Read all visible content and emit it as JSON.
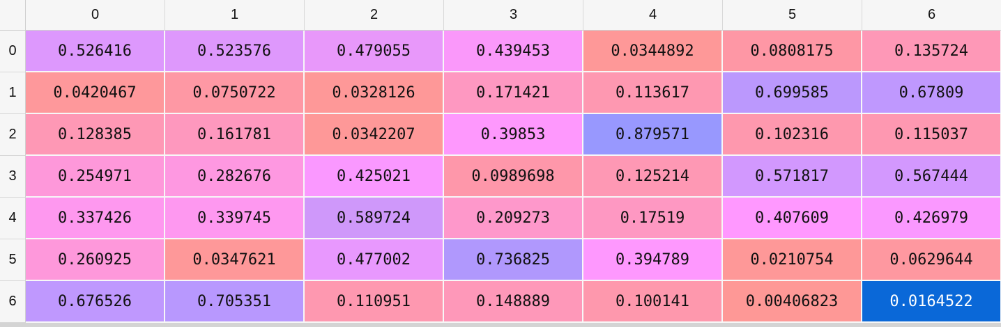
{
  "table": {
    "columns": [
      "0",
      "1",
      "2",
      "3",
      "4",
      "5",
      "6"
    ],
    "rows": [
      {
        "index": "0",
        "cells": [
          {
            "value": "0.526416",
            "color": "#DD98FD"
          },
          {
            "value": "0.523576",
            "color": "#DE98FC"
          },
          {
            "value": "0.479055",
            "color": "#E898FA"
          },
          {
            "value": "0.439453",
            "color": "#FA98FA"
          },
          {
            "value": "0.0344892",
            "color": "#FE9898"
          },
          {
            "value": "0.0808175",
            "color": "#FE97A5"
          },
          {
            "value": "0.135724",
            "color": "#FE98B7"
          }
        ]
      },
      {
        "index": "1",
        "cells": [
          {
            "value": "0.0420467",
            "color": "#FE989B"
          },
          {
            "value": "0.0750722",
            "color": "#FE98A4"
          },
          {
            "value": "0.0328126",
            "color": "#FE9898"
          },
          {
            "value": "0.171421",
            "color": "#FE98C1"
          },
          {
            "value": "0.113617",
            "color": "#FE98B1"
          },
          {
            "value": "0.699585",
            "color": "#BB98FD"
          },
          {
            "value": "0.67809",
            "color": "#BF98FE"
          }
        ]
      },
      {
        "index": "2",
        "cells": [
          {
            "value": "0.128385",
            "color": "#FE98B5"
          },
          {
            "value": "0.161781",
            "color": "#FE98BE"
          },
          {
            "value": "0.0342207",
            "color": "#FE9898"
          },
          {
            "value": "0.39853",
            "color": "#FE98FD"
          },
          {
            "value": "0.879571",
            "color": "#9898FE"
          },
          {
            "value": "0.102316",
            "color": "#FE98AE"
          },
          {
            "value": "0.115037",
            "color": "#FE98B1"
          }
        ]
      },
      {
        "index": "3",
        "cells": [
          {
            "value": "0.254971",
            "color": "#FE98DA"
          },
          {
            "value": "0.282676",
            "color": "#FE98E1"
          },
          {
            "value": "0.425021",
            "color": "#FA98FF"
          },
          {
            "value": "0.0989698",
            "color": "#FE97AA"
          },
          {
            "value": "0.125214",
            "color": "#FE98B4"
          },
          {
            "value": "0.571817",
            "color": "#D298FE"
          },
          {
            "value": "0.567444",
            "color": "#D398FE"
          }
        ]
      },
      {
        "index": "4",
        "cells": [
          {
            "value": "0.337426",
            "color": "#FE98EF"
          },
          {
            "value": "0.339745",
            "color": "#FE98F0"
          },
          {
            "value": "0.589724",
            "color": "#CF98FA"
          },
          {
            "value": "0.209273",
            "color": "#FE98CB"
          },
          {
            "value": "0.17519",
            "color": "#FE98C2"
          },
          {
            "value": "0.407609",
            "color": "#FF98FF"
          },
          {
            "value": "0.426979",
            "color": "#FA98FF"
          }
        ]
      },
      {
        "index": "5",
        "cells": [
          {
            "value": "0.260925",
            "color": "#FE98DB"
          },
          {
            "value": "0.0347621",
            "color": "#FE9899"
          },
          {
            "value": "0.477002",
            "color": "#E898FE"
          },
          {
            "value": "0.736825",
            "color": "#B098FD"
          },
          {
            "value": "0.394789",
            "color": "#FE98FE"
          },
          {
            "value": "0.0210754",
            "color": "#FE9898"
          },
          {
            "value": "0.0629644",
            "color": "#FE98A0"
          }
        ]
      },
      {
        "index": "6",
        "cells": [
          {
            "value": "0.676526",
            "color": "#BF98FE"
          },
          {
            "value": "0.705351",
            "color": "#B898FE"
          },
          {
            "value": "0.110951",
            "color": "#FE98B0"
          },
          {
            "value": "0.148889",
            "color": "#FE98B9"
          },
          {
            "value": "0.100141",
            "color": "#FE98AD"
          },
          {
            "value": "0.00406823",
            "color": "#FE9896"
          },
          {
            "value": "0.0164522",
            "color": "#0A68D8",
            "selected": true
          }
        ]
      }
    ]
  }
}
